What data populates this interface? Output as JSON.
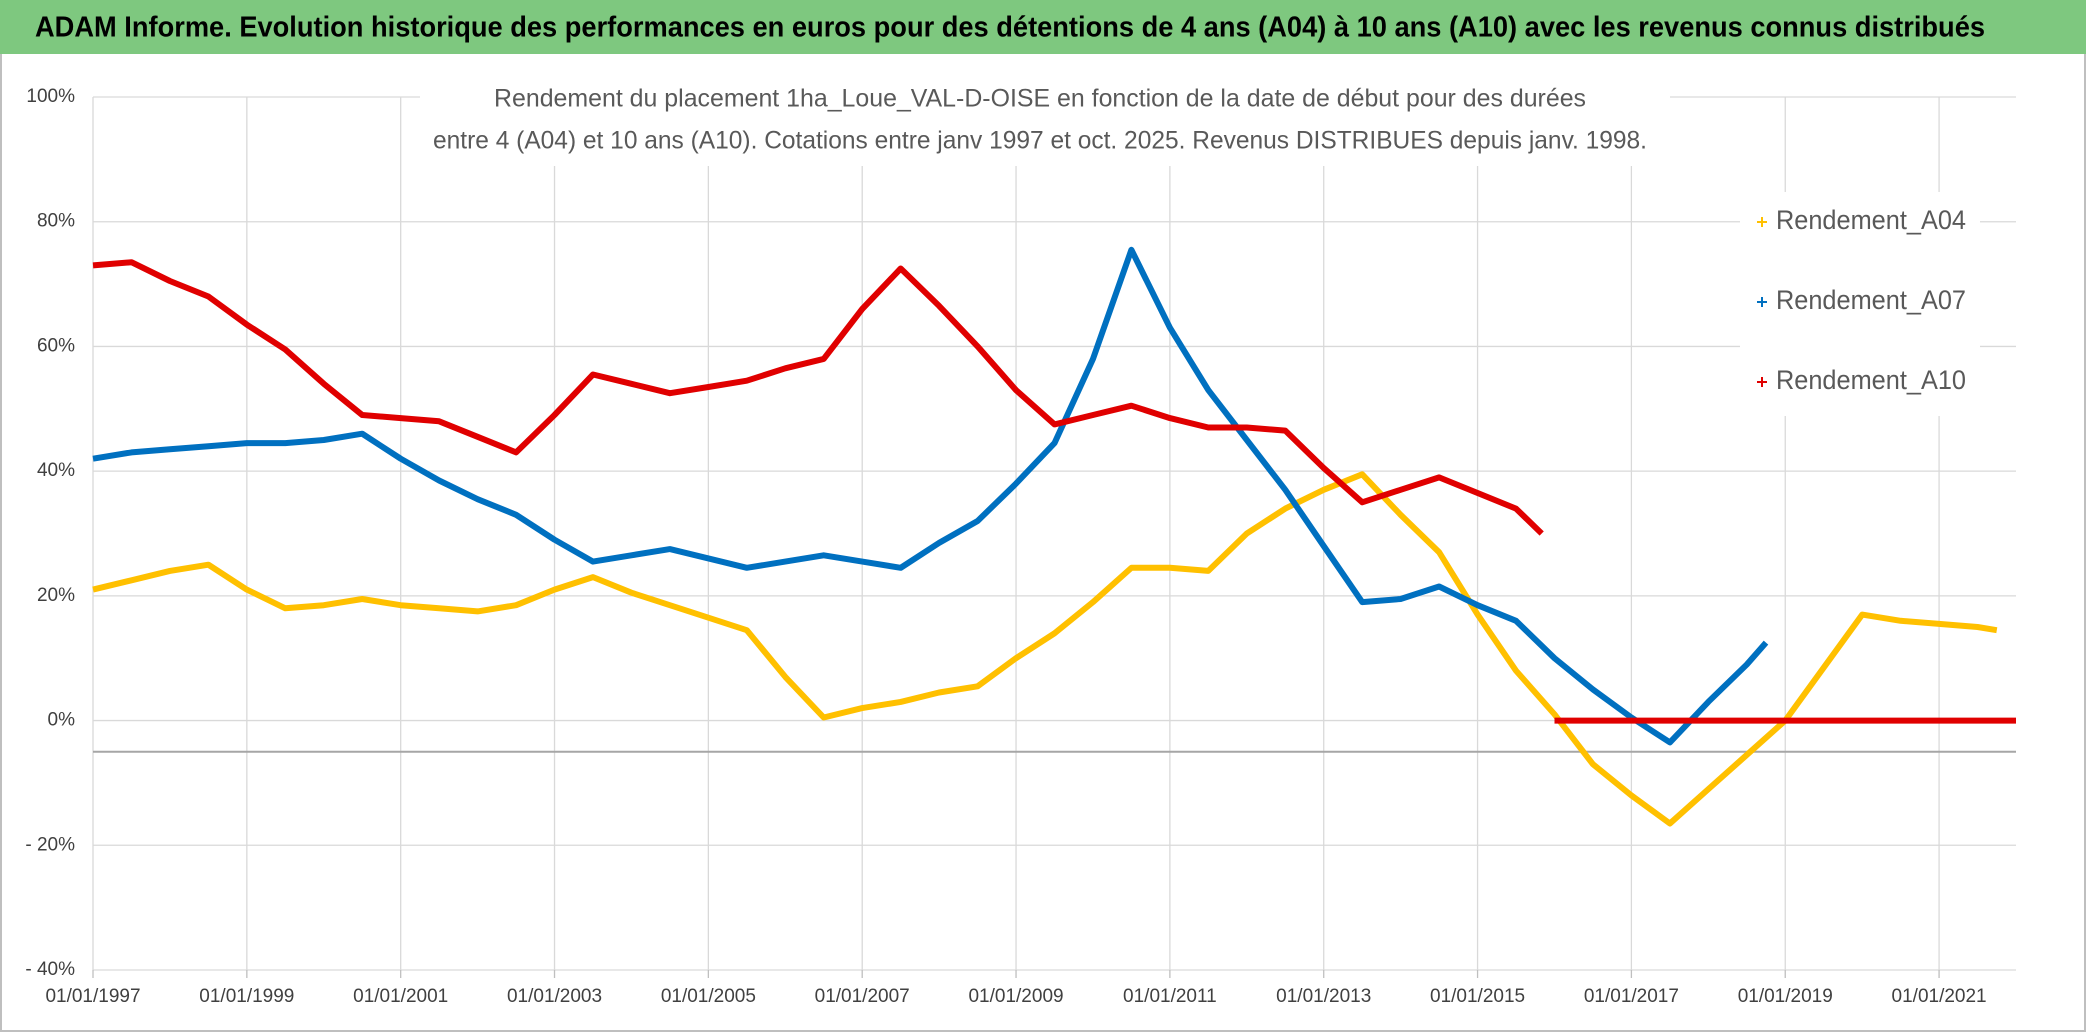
{
  "page_title": "ADAM Informe. Evolution historique des performances en euros pour des détentions de 4 ans (A04) à 10 ans (A10) avec les revenus connus distribués",
  "chart_data": {
    "type": "line",
    "title_lines": [
      "Rendement du placement 1ha_Loue_VAL-D-OISE en fonction de la date de début pour des durées",
      "entre 4 (A04) et 10 ans (A10). Cotations entre janv 1997 et oct. 2025. Revenus DISTRIBUES depuis janv. 1998."
    ],
    "xlim": [
      "01/01/1997",
      "01/01/2022"
    ],
    "xticks": [
      "01/01/1997",
      "01/01/1999",
      "01/01/2001",
      "01/01/2003",
      "01/01/2005",
      "01/01/2007",
      "01/01/2009",
      "01/01/2011",
      "01/01/2013",
      "01/01/2015",
      "01/01/2017",
      "01/01/2019",
      "01/01/2021"
    ],
    "ylim": [
      -40,
      100
    ],
    "yticks": [
      {
        "value": -40,
        "label": "- 40%"
      },
      {
        "value": -20,
        "label": "- 20%"
      },
      {
        "value": 0,
        "label": "0%"
      },
      {
        "value": 20,
        "label": "20%"
      },
      {
        "value": 40,
        "label": "40%"
      },
      {
        "value": 60,
        "label": "60%"
      },
      {
        "value": 80,
        "label": "80%"
      },
      {
        "value": 100,
        "label": "100%"
      }
    ],
    "x_axis_crossing": -5,
    "grid": true,
    "legend": "right",
    "series": [
      {
        "name": "Rendement_A04",
        "color": "#ffc000",
        "x": [
          "01/01/1997",
          "01/07/1997",
          "01/01/1998",
          "01/07/1998",
          "01/01/1999",
          "01/07/1999",
          "01/01/2000",
          "01/07/2000",
          "01/01/2001",
          "01/07/2001",
          "01/01/2002",
          "01/07/2002",
          "01/01/2003",
          "01/07/2003",
          "01/01/2004",
          "01/07/2004",
          "01/01/2005",
          "01/07/2005",
          "01/01/2006",
          "01/07/2006",
          "01/01/2007",
          "01/07/2007",
          "01/01/2008",
          "01/07/2008",
          "01/01/2009",
          "01/07/2009",
          "01/01/2010",
          "01/07/2010",
          "01/01/2011",
          "01/07/2011",
          "01/01/2012",
          "01/07/2012",
          "01/01/2013",
          "01/07/2013",
          "01/01/2014",
          "01/07/2014",
          "01/01/2015",
          "01/07/2015",
          "01/01/2016",
          "01/07/2016",
          "01/01/2017",
          "01/07/2017",
          "01/01/2018",
          "01/07/2018",
          "01/01/2019",
          "01/07/2019",
          "01/01/2020",
          "01/07/2020",
          "01/01/2021",
          "01/07/2021",
          "01/10/2021"
        ],
        "values": [
          21,
          22.5,
          24,
          25,
          21,
          18,
          18.5,
          19.5,
          18.5,
          18,
          17.5,
          18.5,
          21,
          23,
          20.5,
          18.5,
          16.5,
          14.5,
          7,
          0.5,
          2,
          3,
          4.5,
          5.5,
          10,
          14,
          19,
          24.5,
          24.5,
          24,
          30,
          34,
          37,
          39.5,
          33,
          27,
          17,
          8,
          1,
          -7,
          -12,
          -16.5,
          -11,
          -5.5,
          0,
          8.5,
          17,
          16,
          15.5,
          15,
          14.5
        ]
      },
      {
        "name": "Rendement_A07",
        "color": "#0070c0",
        "x": [
          "01/01/1997",
          "01/07/1997",
          "01/01/1998",
          "01/07/1998",
          "01/01/1999",
          "01/07/1999",
          "01/01/2000",
          "01/07/2000",
          "01/01/2001",
          "01/07/2001",
          "01/01/2002",
          "01/07/2002",
          "01/01/2003",
          "01/07/2003",
          "01/01/2004",
          "01/07/2004",
          "01/01/2005",
          "01/07/2005",
          "01/01/2006",
          "01/07/2006",
          "01/01/2007",
          "01/07/2007",
          "01/01/2008",
          "01/07/2008",
          "01/01/2009",
          "01/07/2009",
          "01/01/2010",
          "01/07/2010",
          "01/01/2011",
          "01/07/2011",
          "01/01/2012",
          "01/07/2012",
          "01/01/2013",
          "01/07/2013",
          "01/01/2014",
          "01/07/2014",
          "01/01/2015",
          "01/07/2015",
          "01/01/2016",
          "01/07/2016",
          "01/01/2017",
          "01/07/2017",
          "01/01/2018",
          "01/07/2018",
          "01/10/2018"
        ],
        "values": [
          42,
          43,
          43.5,
          44,
          44.5,
          44.5,
          45,
          46,
          42,
          38.5,
          35.5,
          33,
          29,
          25.5,
          26.5,
          27.5,
          26,
          24.5,
          25.5,
          26.5,
          25.5,
          24.5,
          28.5,
          32,
          38,
          44.5,
          58,
          75.5,
          63,
          53,
          45,
          37,
          28,
          19,
          19.5,
          21.5,
          18.5,
          16,
          10,
          5,
          0.5,
          -3.5,
          3,
          9,
          12.5
        ]
      },
      {
        "name": "Rendement_A10",
        "color": "#e00000",
        "x": [
          "01/01/1997",
          "01/07/1997",
          "01/01/1998",
          "01/07/1998",
          "01/01/1999",
          "01/07/1999",
          "01/01/2000",
          "01/07/2000",
          "01/01/2001",
          "01/07/2001",
          "01/01/2002",
          "01/07/2002",
          "01/01/2003",
          "01/07/2003",
          "01/01/2004",
          "01/07/2004",
          "01/01/2005",
          "01/07/2005",
          "01/01/2006",
          "01/07/2006",
          "01/01/2007",
          "01/07/2007",
          "01/01/2008",
          "01/07/2008",
          "01/01/2009",
          "01/07/2009",
          "01/01/2010",
          "01/07/2010",
          "01/01/2011",
          "01/07/2011",
          "01/01/2012",
          "01/07/2012",
          "01/01/2013",
          "01/07/2013",
          "01/01/2014",
          "01/07/2014",
          "01/01/2015",
          "01/07/2015",
          "01/11/2015",
          "01/12/2015",
          "01/01/2016",
          "01/01/2022"
        ],
        "values": [
          73,
          73.5,
          70.5,
          68,
          63.5,
          59.5,
          54,
          49,
          48.5,
          48,
          45.5,
          43,
          49,
          55.5,
          54,
          52.5,
          53.5,
          54.5,
          56.5,
          58,
          66,
          72.5,
          66.5,
          60,
          53,
          47.5,
          49,
          50.5,
          48.5,
          47,
          47,
          46.5,
          40.5,
          35,
          37,
          39,
          36.5,
          34,
          30,
          null,
          0,
          0
        ]
      }
    ]
  }
}
